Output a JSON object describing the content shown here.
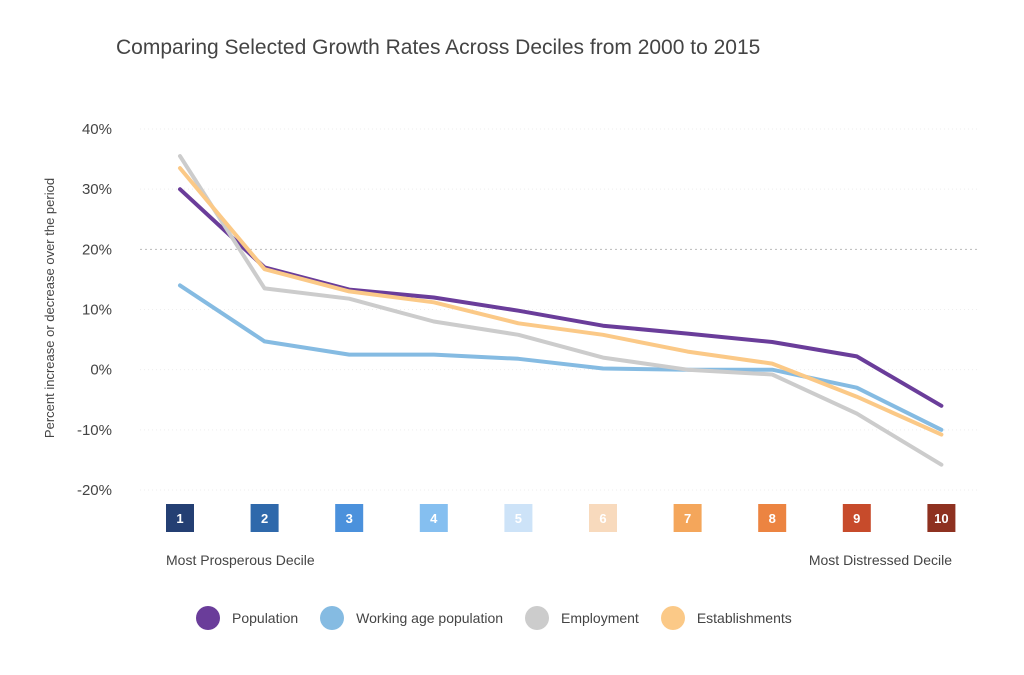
{
  "chart_data": {
    "type": "line",
    "title": "Comparing Selected Growth Rates Across Deciles from 2000 to 2015",
    "ylabel": "Percent increase or decrease over the period",
    "xlabel": "",
    "ylim": [
      -20,
      40
    ],
    "yticks": [
      "40%",
      "30%",
      "20%",
      "10%",
      "0%",
      "-10%",
      "-20%"
    ],
    "ytick_values": [
      40,
      30,
      20,
      10,
      0,
      -10,
      -20
    ],
    "reference_line": 20,
    "grid": true,
    "legend_position": "bottom",
    "x": [
      "1",
      "2",
      "3",
      "4",
      "5",
      "6",
      "7",
      "8",
      "9",
      "10"
    ],
    "decile_colors": [
      "#243f73",
      "#2f69ab",
      "#4b91dc",
      "#85bff0",
      "#cde3f8",
      "#f8dabd",
      "#f4a65b",
      "#ec8441",
      "#c74b2b",
      "#8e3120"
    ],
    "x_end_labels": {
      "left": "Most Prosperous Decile",
      "right": "Most Distressed Decile"
    },
    "series": [
      {
        "name": "Population",
        "color": "#6a3d9a",
        "values": [
          30,
          17,
          13.3,
          12,
          9.8,
          7.3,
          6,
          4.6,
          2.2,
          -6
        ]
      },
      {
        "name": "Working age population",
        "color": "#85bbe2",
        "values": [
          14,
          4.7,
          2.5,
          2.5,
          1.8,
          0.2,
          0,
          0,
          -3,
          -10
        ]
      },
      {
        "name": "Employment",
        "color": "#cccccc",
        "values": [
          35.5,
          13.5,
          11.8,
          8,
          5.8,
          2,
          0,
          -0.8,
          -7.3,
          -15.8
        ]
      },
      {
        "name": "Establishments",
        "color": "#fbc987",
        "values": [
          33.5,
          16.7,
          13,
          11.2,
          7.7,
          5.8,
          3,
          1,
          -4.5,
          -10.8
        ]
      }
    ]
  }
}
